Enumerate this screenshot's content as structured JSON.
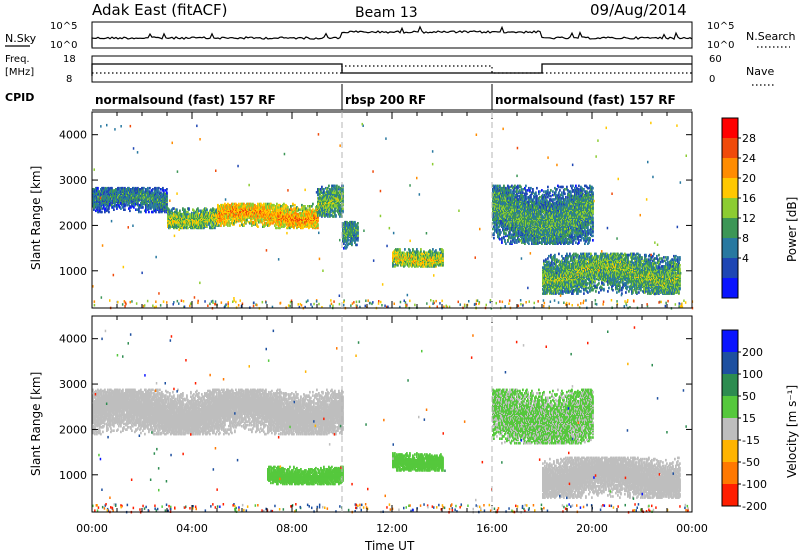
{
  "header": {
    "station": "Adak East (fitACF)",
    "beam": "Beam 13",
    "date": "09/Aug/2014"
  },
  "top_panels": {
    "nsky_label": "N.Sky",
    "nsky_ticks_left": [
      "10^5",
      "10^0"
    ],
    "nsearch_label": "N.Search",
    "nsearch_ticks_right": [
      "10^5",
      "10^0"
    ],
    "freq_label_1": "Freq.",
    "freq_label_2": "[MHz]",
    "freq_ticks_left": [
      "18",
      "8"
    ],
    "nave_label": "Nave",
    "nave_ticks_right": [
      "60",
      "0"
    ],
    "cpid_label": "CPID",
    "cpid_segments": [
      {
        "label": "normalsound (fast) 157 RF",
        "start_hour": 0,
        "end_hour": 10
      },
      {
        "label": "rbsp 200 RF",
        "start_hour": 10,
        "end_hour": 16
      },
      {
        "label": "normalsound (fast) 157 RF",
        "start_hour": 16,
        "end_hour": 24
      }
    ]
  },
  "power_colorbar": {
    "label": "Power [dB]",
    "ticks": [
      "28",
      "24",
      "20",
      "16",
      "12",
      "8",
      "4"
    ],
    "colors": [
      "#ff0000",
      "#f04a0a",
      "#ff8c00",
      "#ffc800",
      "#8ccc32",
      "#3c9656",
      "#2878a0",
      "#1e46b4",
      "#0a14ff"
    ]
  },
  "velocity_colorbar": {
    "label": "Velocity [m s⁻¹]",
    "ticks": [
      "200",
      "100",
      "50",
      "15",
      "-15",
      "-50",
      "-100",
      "-200"
    ],
    "colors": [
      "#0a14ff",
      "#1e50a0",
      "#2d8c50",
      "#55c83c",
      "#bebebe",
      "#ffb400",
      "#ff7800",
      "#ff1e00"
    ]
  },
  "axes": {
    "ylabel": "Slant Range [km]",
    "yticks": [
      "4000",
      "3000",
      "2000",
      "1000"
    ],
    "xlabel": "Time UT",
    "xticks": [
      "00:00",
      "04:00",
      "08:00",
      "12:00",
      "16:00",
      "20:00",
      "00:00"
    ]
  },
  "chart_data": {
    "type": "heatmap",
    "title": "Adak East (fitACF) Beam 13 09/Aug/2014",
    "xlabel": "Time UT",
    "ylabel": "Slant Range [km]",
    "x_range_hours": [
      0,
      24
    ],
    "y_range_km": [
      180,
      4500
    ],
    "y_ticks": [
      1000,
      2000,
      3000,
      4000
    ],
    "x_ticks": [
      "00:00",
      "04:00",
      "08:00",
      "12:00",
      "16:00",
      "20:00",
      "00:00"
    ],
    "program_boundaries_hours": [
      10,
      16
    ],
    "series": [
      {
        "name": "Power [dB]",
        "ticks": [
          4,
          8,
          12,
          16,
          20,
          24,
          28
        ],
        "regions": [
          {
            "t": [
              0.0,
              3.0
            ],
            "range_km": [
              2300,
              2850
            ],
            "power_db": 10
          },
          {
            "t": [
              3.0,
              5.0
            ],
            "range_km": [
              1950,
              2400
            ],
            "power_db": 16
          },
          {
            "t": [
              5.0,
              9.0
            ],
            "range_km": [
              1950,
              2500
            ],
            "power_db": 22
          },
          {
            "t": [
              9.0,
              10.0
            ],
            "range_km": [
              2200,
              2900
            ],
            "power_db": 14
          },
          {
            "t": [
              10.0,
              10.6
            ],
            "range_km": [
              1500,
              2100
            ],
            "power_db": 12
          },
          {
            "t": [
              12.0,
              14.0
            ],
            "range_km": [
              1100,
              1500
            ],
            "power_db": 18
          },
          {
            "t": [
              16.0,
              20.0
            ],
            "range_km": [
              1600,
              2900
            ],
            "power_db": 12
          },
          {
            "t": [
              18.0,
              23.5
            ],
            "range_km": [
              500,
              1400
            ],
            "power_db": 14
          }
        ]
      },
      {
        "name": "Velocity [m s⁻¹]",
        "ticks": [
          -200,
          -100,
          -50,
          -15,
          15,
          50,
          100,
          200
        ],
        "regions": [
          {
            "t": [
              0.0,
              10.0
            ],
            "range_km": [
              1900,
              2900
            ],
            "velocity": 0
          },
          {
            "t": [
              7.0,
              10.0
            ],
            "range_km": [
              800,
              1200
            ],
            "velocity": 30
          },
          {
            "t": [
              12.0,
              14.0
            ],
            "range_km": [
              1100,
              1500
            ],
            "velocity": 30
          },
          {
            "t": [
              16.0,
              20.0
            ],
            "range_km": [
              1700,
              2900
            ],
            "velocity": 20
          },
          {
            "t": [
              18.0,
              23.5
            ],
            "range_km": [
              500,
              1400
            ],
            "velocity": 0
          }
        ]
      }
    ]
  }
}
